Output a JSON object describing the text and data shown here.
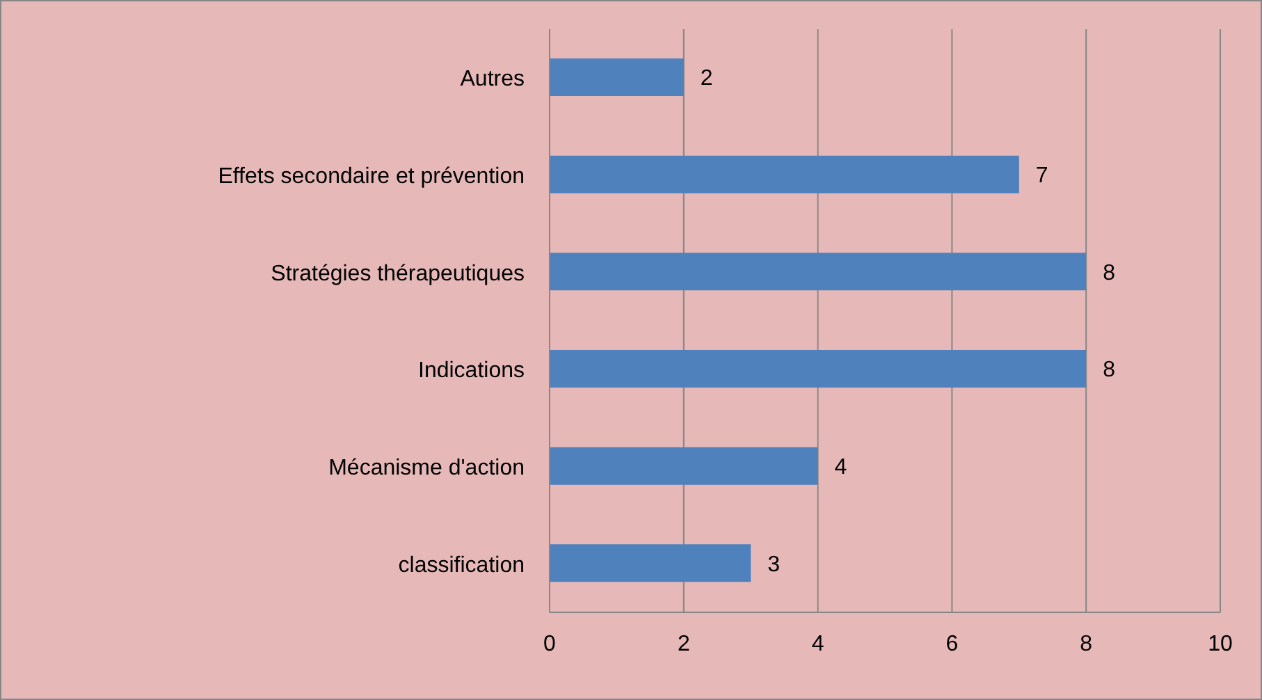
{
  "chart_data": {
    "type": "bar",
    "orientation": "horizontal",
    "categories": [
      "Autres",
      "Effets secondaire et prévention",
      "Stratégies thérapeutiques",
      "Indications",
      "Mécanisme d'action",
      "classification"
    ],
    "values": [
      2,
      7,
      8,
      8,
      4,
      3
    ],
    "color": "#4f81bd",
    "xlim": [
      0,
      10
    ],
    "xticks": [
      0,
      2,
      4,
      6,
      8,
      10
    ],
    "grid": "x",
    "data_labels": true
  }
}
